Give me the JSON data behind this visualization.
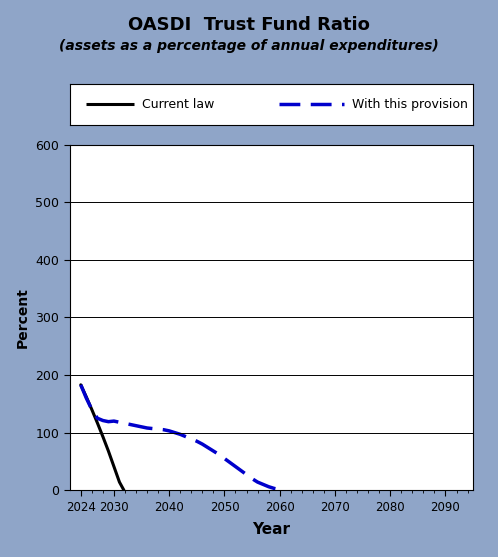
{
  "title_line1": "OASDI  Trust Fund Ratio",
  "title_line2": "(assets as a percentage of annual expenditures)",
  "xlabel": "Year",
  "ylabel": "Percent",
  "xlim": [
    2022,
    2095
  ],
  "ylim": [
    0,
    600
  ],
  "yticks": [
    0,
    100,
    200,
    300,
    400,
    500,
    600
  ],
  "xticks": [
    2024,
    2030,
    2040,
    2050,
    2060,
    2070,
    2080,
    2090
  ],
  "background_outer": "#8fa5c8",
  "background_inner": "#dce5f2",
  "plot_bg": "#ffffff",
  "current_law": {
    "x": [
      2024,
      2025,
      2026,
      2027,
      2028,
      2029,
      2030,
      2031,
      2031.8
    ],
    "y": [
      183,
      162,
      140,
      117,
      93,
      68,
      41,
      14,
      0
    ],
    "color": "#000000",
    "linewidth": 2.2,
    "label": "Current law"
  },
  "provision": {
    "x": [
      2024,
      2025,
      2026,
      2027,
      2028,
      2029,
      2030,
      2031,
      2032,
      2033,
      2034,
      2035,
      2036,
      2037,
      2038,
      2039,
      2040,
      2041,
      2042,
      2043,
      2044,
      2045,
      2046,
      2047,
      2048,
      2049,
      2050,
      2051,
      2052,
      2053,
      2054,
      2055,
      2056,
      2057,
      2058,
      2059,
      2060,
      2061
    ],
    "y": [
      183,
      160,
      140,
      125,
      121,
      119,
      120,
      118,
      116,
      114,
      112,
      110,
      108,
      107,
      106,
      105,
      103,
      100,
      97,
      93,
      89,
      85,
      80,
      74,
      68,
      62,
      55,
      48,
      41,
      34,
      27,
      20,
      14,
      10,
      6,
      3,
      1,
      0
    ],
    "color": "#0000cc",
    "linewidth": 2.5,
    "label": "With this provision"
  }
}
